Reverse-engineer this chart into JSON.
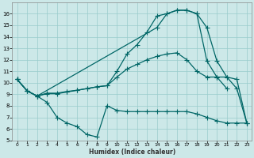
{
  "xlabel": "Humidex (Indice chaleur)",
  "bg_color": "#cce8e8",
  "grid_color": "#99cccc",
  "line_color": "#006666",
  "xlim_min": -0.5,
  "xlim_max": 23.5,
  "ylim_min": 5,
  "ylim_max": 17,
  "line1_x": [
    0,
    1,
    2,
    3,
    4,
    5,
    6,
    7,
    8,
    9,
    10,
    11,
    12,
    13,
    14,
    15,
    16,
    17,
    18,
    19,
    20,
    21
  ],
  "line1_y": [
    10.3,
    9.3,
    8.85,
    9.05,
    9.05,
    9.2,
    9.35,
    9.5,
    9.65,
    9.75,
    11.0,
    12.5,
    13.3,
    14.4,
    15.8,
    16.0,
    16.3,
    16.3,
    16.0,
    11.9,
    10.5,
    9.5
  ],
  "line2_x": [
    0,
    1,
    2,
    3,
    4,
    5,
    6,
    7,
    8,
    9,
    10,
    11,
    12,
    13,
    14,
    15,
    16,
    17,
    18,
    19,
    20,
    21,
    22,
    23
  ],
  "line2_y": [
    10.3,
    9.3,
    8.85,
    9.1,
    9.1,
    9.25,
    9.35,
    9.5,
    9.65,
    9.75,
    10.5,
    11.2,
    11.6,
    12.0,
    12.3,
    12.5,
    12.6,
    12.0,
    11.0,
    10.5,
    10.5,
    10.5,
    10.3,
    6.5
  ],
  "line3_x": [
    0,
    1,
    2,
    3,
    4,
    5,
    6,
    7,
    8,
    9,
    10,
    11,
    12,
    13,
    14,
    15,
    16,
    17,
    18,
    19,
    20,
    21,
    22,
    23
  ],
  "line3_y": [
    10.3,
    9.3,
    8.85,
    8.3,
    7.0,
    6.5,
    6.2,
    5.5,
    5.3,
    8.0,
    7.6,
    7.5,
    7.5,
    7.5,
    7.5,
    7.5,
    7.5,
    7.5,
    7.3,
    7.0,
    6.7,
    6.5,
    6.5,
    6.5
  ],
  "line4_x": [
    0,
    1,
    2,
    14,
    15,
    16,
    17,
    18,
    19,
    20,
    21,
    22,
    23
  ],
  "line4_y": [
    10.3,
    9.3,
    8.85,
    14.8,
    16.0,
    16.3,
    16.3,
    16.0,
    14.8,
    11.9,
    10.5,
    9.5,
    6.5
  ]
}
